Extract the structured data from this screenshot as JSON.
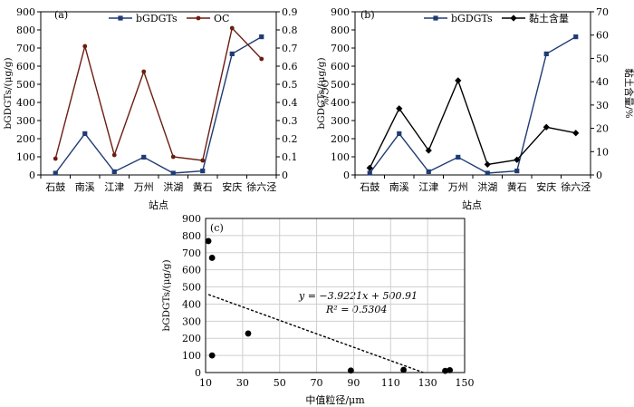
{
  "chart_data": [
    {
      "panel": "(a)",
      "type": "line",
      "categories": [
        "石鼓",
        "南溪",
        "江津",
        "万州",
        "洪湖",
        "黄石",
        "安庆",
        "徐六泾"
      ],
      "xlabel": "站点",
      "ylabel": "bGDGTs/(μg/g)",
      "ylabel_right": "OC/%",
      "ylim": [
        0,
        900
      ],
      "ylim_right": [
        0,
        0.9
      ],
      "yticks": [
        "0",
        "100",
        "200",
        "300",
        "400",
        "500",
        "600",
        "700",
        "800",
        "900"
      ],
      "yticks_right": [
        "0",
        "0.1",
        "0.2",
        "0.3",
        "0.4",
        "0.5",
        "0.6",
        "0.7",
        "0.8",
        "0.9"
      ],
      "legend": "top-center",
      "series": [
        {
          "name": "bGDGTs",
          "axis": "left",
          "marker": "square",
          "color": "#1f3b73",
          "values": [
            10,
            228,
            18,
            98,
            10,
            22,
            668,
            762
          ]
        },
        {
          "name": "OC",
          "axis": "right",
          "marker": "circle",
          "color": "#6b1d12",
          "values": [
            0.09,
            0.71,
            0.11,
            0.57,
            0.1,
            0.08,
            0.81,
            0.64
          ]
        }
      ]
    },
    {
      "panel": "(b)",
      "type": "line",
      "categories": [
        "石鼓",
        "南溪",
        "江津",
        "万州",
        "洪湖",
        "黄石",
        "安庆",
        "徐六泾"
      ],
      "xlabel": "站点",
      "ylabel": "bGDGTs/(μg/g)",
      "ylabel_right": "黏土含量/%",
      "ylim": [
        0,
        900
      ],
      "ylim_right": [
        0,
        70
      ],
      "yticks": [
        "0",
        "100",
        "200",
        "300",
        "400",
        "500",
        "600",
        "700",
        "800",
        "900"
      ],
      "yticks_right": [
        "0",
        "10",
        "20",
        "30",
        "40",
        "50",
        "60",
        "70"
      ],
      "legend": "top-center",
      "series": [
        {
          "name": "bGDGTs",
          "axis": "left",
          "marker": "square",
          "color": "#1f3b73",
          "values": [
            10,
            228,
            18,
            98,
            10,
            22,
            668,
            762
          ]
        },
        {
          "name": "黏土含量",
          "axis": "right",
          "marker": "diamond",
          "color": "#000000",
          "values": [
            3.0,
            28.5,
            10.5,
            40.5,
            4.5,
            6.5,
            20.5,
            18.0
          ]
        }
      ]
    },
    {
      "panel": "(c)",
      "type": "scatter",
      "xlabel": "中值粒径/μm",
      "ylabel": "bGDGTs/(μg/g)",
      "xlim": [
        10,
        150
      ],
      "ylim": [
        0,
        900
      ],
      "xticks": [
        "10",
        "30",
        "50",
        "70",
        "90",
        "110",
        "130",
        "150"
      ],
      "yticks": [
        "0",
        "100",
        "200",
        "300",
        "400",
        "500",
        "600",
        "700",
        "800",
        "900"
      ],
      "grid": true,
      "points": [
        {
          "x": 11.5,
          "y": 768
        },
        {
          "x": 13.5,
          "y": 670
        },
        {
          "x": 13.5,
          "y": 100
        },
        {
          "x": 33,
          "y": 228
        },
        {
          "x": 88.5,
          "y": 12
        },
        {
          "x": 117,
          "y": 16
        },
        {
          "x": 139.5,
          "y": 10
        },
        {
          "x": 142,
          "y": 14
        }
      ],
      "trendline": {
        "slope": -3.9221,
        "intercept": 500.91,
        "x_range": [
          11.5,
          127.7
        ]
      },
      "equation": "y = −3.9221x + 500.91",
      "r2": "R² = 0.5304"
    }
  ]
}
